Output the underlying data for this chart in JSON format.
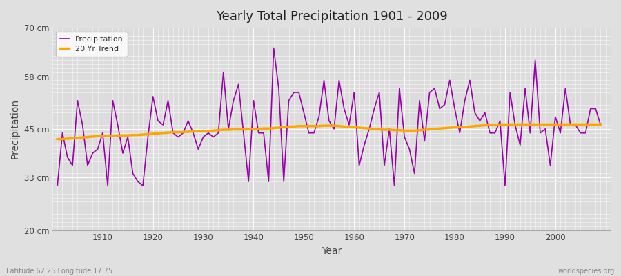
{
  "title": "Yearly Total Precipitation 1901 - 2009",
  "xlabel": "Year",
  "ylabel": "Precipitation",
  "start_year": 1901,
  "end_year": 2009,
  "ylim": [
    20,
    70
  ],
  "yticks": [
    20,
    33,
    45,
    58,
    70
  ],
  "ytick_labels": [
    "20 cm",
    "33 cm",
    "45 cm",
    "58 cm",
    "70 cm"
  ],
  "precip_color": "#9900AA",
  "trend_color": "#FFA500",
  "bg_color": "#e0e0e0",
  "plot_bg_color": "#dcdcdc",
  "grid_color": "#ffffff",
  "legend_labels": [
    "Precipitation",
    "20 Yr Trend"
  ],
  "footer_left": "Latitude 62.25 Longitude 17.75",
  "footer_right": "worldspecies.org",
  "xticks": [
    1910,
    1920,
    1930,
    1940,
    1950,
    1960,
    1970,
    1980,
    1990,
    2000
  ],
  "precipitation": [
    31,
    44,
    38,
    36,
    52,
    46,
    36,
    39,
    40,
    44,
    31,
    52,
    46,
    39,
    43,
    34,
    32,
    31,
    43,
    53,
    47,
    46,
    52,
    44,
    43,
    44,
    47,
    44,
    40,
    43,
    44,
    43,
    44,
    59,
    45,
    52,
    56,
    44,
    32,
    52,
    44,
    44,
    32,
    65,
    55,
    32,
    52,
    54,
    54,
    49,
    44,
    44,
    48,
    57,
    47,
    45,
    57,
    50,
    46,
    54,
    36,
    41,
    45,
    50,
    54,
    36,
    45,
    31,
    55,
    43,
    40,
    34,
    52,
    42,
    54,
    55,
    50,
    51,
    57,
    50,
    44,
    52,
    57,
    49,
    47,
    49,
    44,
    44,
    47,
    31,
    54,
    46,
    41,
    55,
    44,
    62,
    44,
    45,
    36,
    48,
    44,
    55,
    46,
    46,
    44,
    44,
    50,
    50,
    46
  ],
  "trend": [
    42.5,
    42.5,
    42.6,
    42.7,
    42.8,
    42.9,
    43.0,
    43.1,
    43.2,
    43.3,
    43.3,
    43.3,
    43.4,
    43.4,
    43.4,
    43.5,
    43.5,
    43.6,
    43.7,
    43.8,
    43.9,
    44.0,
    44.1,
    44.2,
    44.2,
    44.2,
    44.3,
    44.4,
    44.5,
    44.5,
    44.5,
    44.6,
    44.7,
    44.8,
    44.8,
    44.9,
    44.9,
    44.9,
    45.0,
    45.0,
    45.0,
    45.1,
    45.1,
    45.2,
    45.3,
    45.5,
    45.6,
    45.6,
    45.7,
    45.7,
    45.7,
    45.7,
    45.7,
    45.8,
    45.8,
    45.8,
    45.7,
    45.6,
    45.5,
    45.4,
    45.3,
    45.2,
    45.1,
    45.0,
    44.9,
    44.8,
    44.8,
    44.7,
    44.7,
    44.6,
    44.6,
    44.6,
    44.7,
    44.8,
    44.9,
    45.0,
    45.1,
    45.2,
    45.3,
    45.4,
    45.4,
    45.5,
    45.6,
    45.7,
    45.8,
    45.9,
    46.0,
    46.0,
    46.1,
    46.1,
    46.1,
    46.1,
    46.1,
    46.1,
    46.1,
    46.1,
    46.1,
    46.1,
    46.1,
    46.1,
    46.1,
    46.1,
    46.1,
    46.1,
    46.1,
    46.1,
    46.1,
    46.1,
    46.1
  ]
}
